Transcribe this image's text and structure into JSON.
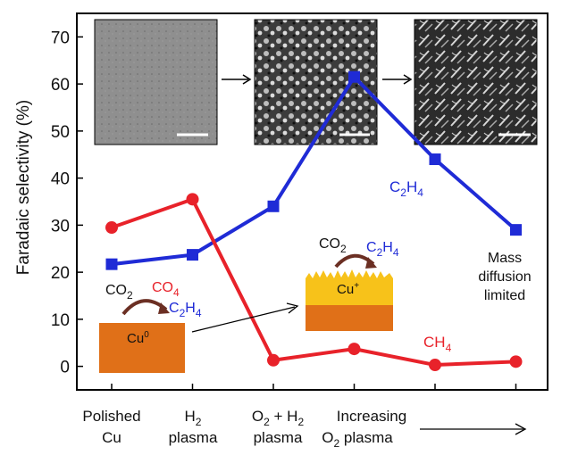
{
  "chart_data": {
    "type": "line",
    "ylabel": "Faradaic selectivity (%)",
    "ylim": [
      -5,
      75
    ],
    "yticks": [
      "0",
      "10",
      "20",
      "30",
      "40",
      "50",
      "60",
      "70"
    ],
    "x_labels": [
      [
        "Polished",
        "Cu"
      ],
      [
        "H",
        "2",
        "plasma"
      ],
      [
        "O",
        "2",
        " + H",
        "2",
        "plasma"
      ],
      [
        "Increasing",
        "O",
        "2",
        " plasma"
      ]
    ],
    "grid": false,
    "series": [
      {
        "name": "C2H4",
        "color": "#1f2bd6",
        "marker": "square",
        "x": [
          0,
          1,
          2,
          3,
          4,
          5
        ],
        "values": [
          21.7,
          23.7,
          34,
          61.5,
          44,
          29
        ]
      },
      {
        "name": "CH4",
        "color": "#e8222a",
        "marker": "circle",
        "x": [
          0,
          1,
          2,
          3,
          4,
          5
        ],
        "values": [
          29.5,
          35.5,
          1.3,
          3.7,
          0.3,
          1.0
        ]
      }
    ],
    "series_labels": {
      "c2h4": {
        "main": "C",
        "sub1": "2",
        "mid": "H",
        "sub2": "4",
        "color": "#1f2bd6"
      },
      "ch4": {
        "main": "CH",
        "sub": "4",
        "color": "#e8222a"
      }
    },
    "annotations": {
      "mass_diffusion": [
        "Mass",
        "diffusion",
        "limited"
      ],
      "left_inset": {
        "co2": "CO",
        "co2_sub": "2",
        "co4": "CO",
        "co4_sub": "4",
        "c2h4": "C",
        "c2h4_sub1": "2",
        "c2h4_h": "H",
        "c2h4_sub2": "4",
        "cu0": "Cu",
        "cu0_sup": "0"
      },
      "right_inset": {
        "co2": "CO",
        "co2_sub": "2",
        "c2h4": "C",
        "c2h4_sub1": "2",
        "c2h4_h": "H",
        "c2h4_sub2": "4",
        "cuplus": "Cu",
        "cuplus_sup": "+"
      }
    }
  },
  "colors": {
    "c2h4": "#1f2bd6",
    "ch4": "#e8222a",
    "copper": "#e07018",
    "copper_top": "#f7c21a"
  },
  "icons": [
    "sem-micrograph-polished",
    "sem-micrograph-o2h2",
    "sem-micrograph-increasing",
    "curved-arrow-icon",
    "right-arrow-icon"
  ]
}
